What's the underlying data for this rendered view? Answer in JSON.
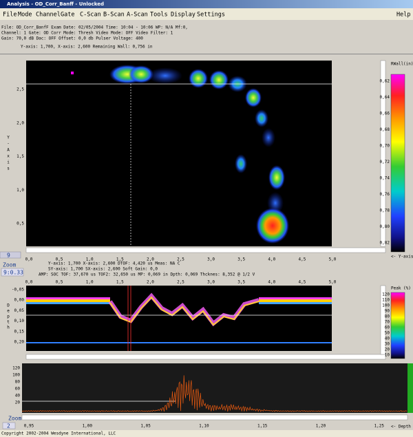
{
  "window": {
    "title": "Analysis - OD_Corr_Banff - Unlocked"
  },
  "menu": [
    "File",
    "Mode",
    "Channel",
    "Gate",
    "C-Scan",
    "B-Scan",
    "A-Scan",
    "Tools",
    "Display",
    "Settings",
    "Help"
  ],
  "header": {
    "lines": [
      "File: OD_Corr_BanfF  Exam Date: 02/05/2004  Time: 10:04 - 10:06  WP: N/A  Mf:0,",
      "Channel: 1  Gate: OD Corr  Mode: Thresh  Video Mode: OFF  Video Filter: 1",
      "Gain: 70,0 dB  Dac: OFF  Offset: 0,0 db  Pulser Voltage: 400"
    ],
    "cursor": "Y-axis:     1,700, X-axis:     2,600   Remaining Wall:   0,756 in"
  },
  "cscan": {
    "y_label": "Y-Axis",
    "yticks": [
      "2,5",
      "2,0",
      "1,5",
      "1,0",
      "0,5"
    ],
    "xticks": [
      "0,0",
      "0,5",
      "1,0",
      "1,5",
      "2,0",
      "2,5",
      "3,0",
      "3,5",
      "4,0",
      "4,5",
      "5,0"
    ],
    "colorbar_title": "RWall(in)",
    "colorbar_labels": [
      "0,62",
      "0,64",
      "0,66",
      "0,68",
      "0,70",
      "0,72",
      "0,74",
      "0,76",
      "0,78",
      "0,80",
      "0,82"
    ],
    "axis_note": "<- Y-axis"
  },
  "zoom": {
    "index": "9",
    "label": "Zoom",
    "value": "9:0.33"
  },
  "bscan": {
    "info": [
      "Y-axis:   1,700  X-axis:   2,600  DTOF: 4,420 us  Meas: NA C",
      "SY-axis:  1,700  SX-axis:  2,600  Soft Gain: 0,0",
      "AMP:  SOC TOF: 37,670 us  TOF2: 32,650 us  MP: 0,069 in  Dpth: 0,069 Thcknes: 8,352 @ 1/2 V"
    ],
    "xticks": [
      "0,0",
      "0,5",
      "1,0",
      "1,5",
      "2,0",
      "2,5",
      "3,0",
      "3,5",
      "4,0",
      "4,5",
      "5,0"
    ],
    "yticks": [
      "-0,05",
      "0,00",
      "0,05",
      "0,10",
      "0,15",
      "0,20"
    ],
    "y_label": "Depth",
    "colorbar_title": "Peak (%)",
    "colorbar_labels": [
      "120",
      "110",
      "100",
      "90",
      "80",
      "70",
      "60",
      "50",
      "40",
      "30",
      "20",
      "10"
    ]
  },
  "ascan": {
    "yticks": [
      "120",
      "100",
      "80",
      "60",
      "40",
      "20"
    ],
    "xticks": [
      "0,95",
      "1,00",
      "1,05",
      "1,10",
      "1,15",
      "1,20",
      "1,25"
    ],
    "axis_note": "<- Depth",
    "zoom_label": "Zoom",
    "zoom_value": "2"
  },
  "footer": "Copyright 2002-2004 Wesdyne International, LLC"
}
